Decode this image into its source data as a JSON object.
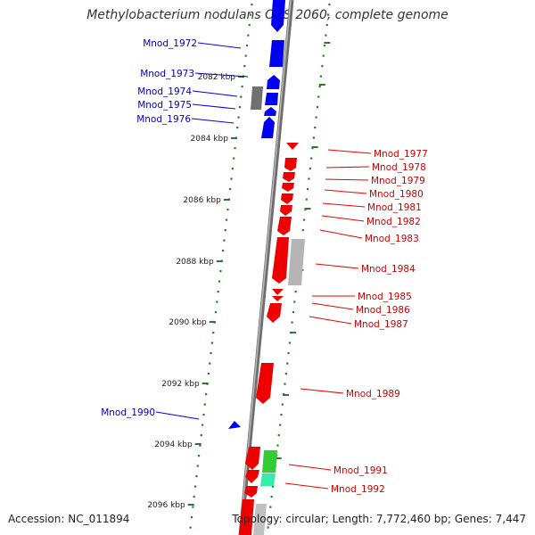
{
  "title": "Methylobacterium nodulans ORS 2060, complete genome",
  "footer": {
    "accession": "Accession: NC_011894",
    "topology": "Topology: circular; Length: 7,772,460 bp; Genes: 7,447"
  },
  "colors": {
    "forward_gene": "#0000ee",
    "reverse_gene": "#ee0000",
    "other_feature": "#b0b0b0",
    "dark_feature": "#707070",
    "rna_feature": "#33cc33",
    "rna_feature_light": "#33eeaa",
    "scale_tick": "#2a7a2a",
    "backbone": "#808080"
  },
  "scale_labels": [
    "2082 kbp",
    "2084 kbp",
    "2086 kbp",
    "2088 kbp",
    "2090 kbp",
    "2092 kbp",
    "2094 kbp",
    "2096 kbp"
  ],
  "forward_labels": [
    "Mnod_1972",
    "Mnod_1973",
    "Mnod_1974",
    "Mnod_1975",
    "Mnod_1976",
    "Mnod_1990"
  ],
  "reverse_labels": [
    "Mnod_1977",
    "Mnod_1978",
    "Mnod_1979",
    "Mnod_1980",
    "Mnod_1981",
    "Mnod_1982",
    "Mnod_1983",
    "Mnod_1984",
    "Mnod_1985",
    "Mnod_1986",
    "Mnod_1987",
    "Mnod_1989",
    "Mnod_1991",
    "Mnod_1992"
  ]
}
